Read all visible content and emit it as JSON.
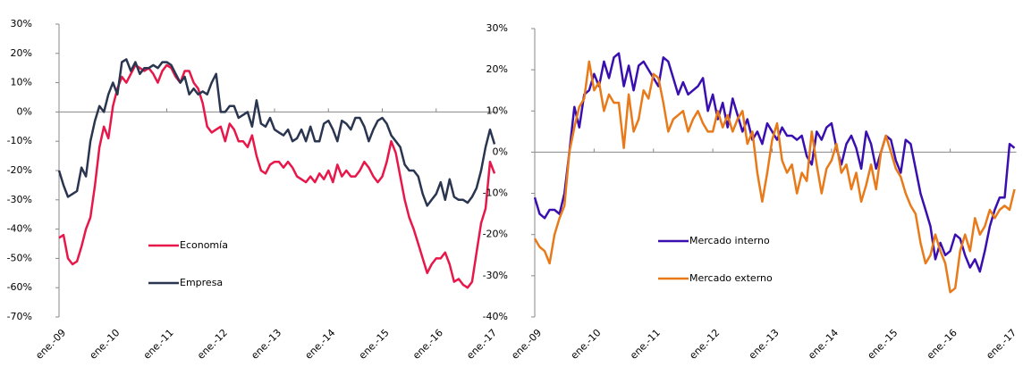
{
  "chart_data": [
    {
      "type": "line",
      "categories": [
        "ene.-09",
        null,
        null,
        null,
        null,
        null,
        null,
        null,
        null,
        null,
        null,
        null,
        "ene.-10",
        null,
        null,
        null,
        null,
        null,
        null,
        null,
        null,
        null,
        null,
        null,
        "ene.-11",
        null,
        null,
        null,
        null,
        null,
        null,
        null,
        null,
        null,
        null,
        null,
        "ene.-12",
        null,
        null,
        null,
        null,
        null,
        null,
        null,
        null,
        null,
        null,
        null,
        "ene.-13",
        null,
        null,
        null,
        null,
        null,
        null,
        null,
        null,
        null,
        null,
        null,
        "ene.-14",
        null,
        null,
        null,
        null,
        null,
        null,
        null,
        null,
        null,
        null,
        null,
        "ene.-15",
        null,
        null,
        null,
        null,
        null,
        null,
        null,
        null,
        null,
        null,
        null,
        "ene.-16",
        null,
        null,
        null,
        null,
        null,
        null,
        null,
        null,
        null,
        null,
        null,
        "ene.-17",
        null
      ],
      "series": [
        {
          "name": "Economía",
          "color": "#e8174a",
          "values": [
            -43,
            -42,
            -50,
            -52,
            -51,
            -46,
            -40,
            -36,
            -25,
            -12,
            -5,
            -9,
            2,
            8,
            12,
            10,
            13,
            16,
            15,
            14,
            15,
            13,
            10,
            14,
            16,
            15,
            12,
            10,
            14,
            14,
            10,
            8,
            3,
            -5,
            -7,
            -6,
            -5,
            -10,
            -4,
            -6,
            -10,
            -10,
            -12,
            -8,
            -15,
            -20,
            -21,
            -18,
            -17,
            -17,
            -19,
            -17,
            -19,
            -22,
            -23,
            -24,
            -22,
            -24,
            -21,
            -23,
            -20,
            -24,
            -18,
            -22,
            -20,
            -22,
            -22,
            -20,
            -17,
            -19,
            -22,
            -24,
            -22,
            -17,
            -10,
            -14,
            -22,
            -30,
            -36,
            -40,
            -45,
            -50,
            -55,
            -52,
            -50,
            -50,
            -48,
            -52,
            -58,
            -57,
            -59,
            -60,
            -58,
            -48,
            -38,
            -33,
            -17,
            -21
          ]
        },
        {
          "name": "Empresa",
          "color": "#2a3550",
          "values": [
            -20,
            -25,
            -29,
            -28,
            -27,
            -19,
            -22,
            -10,
            -3,
            2,
            0,
            6,
            10,
            6,
            17,
            18,
            14,
            17,
            13,
            15,
            15,
            16,
            15,
            17,
            17,
            16,
            13,
            10,
            12,
            6,
            8,
            6,
            7,
            6,
            10,
            13,
            0,
            0,
            2,
            2,
            -2,
            -1,
            0,
            -5,
            4,
            -4,
            -5,
            -2,
            -6,
            -7,
            -8,
            -6,
            -10,
            -9,
            -6,
            -10,
            -5,
            -10,
            -10,
            -4,
            -3,
            -6,
            -10,
            -3,
            -4,
            -6,
            -2,
            -2,
            -5,
            -10,
            -6,
            -3,
            -2,
            -4,
            -8,
            -10,
            -12,
            -18,
            -20,
            -20,
            -22,
            -28,
            -32,
            -30,
            -28,
            -24,
            -30,
            -23,
            -29,
            -30,
            -30,
            -31,
            -29,
            -26,
            -20,
            -12,
            -6,
            -11
          ]
        }
      ],
      "ylim": [
        -70,
        30
      ],
      "yticks": [
        {
          "value": -70,
          "label": "-70%"
        },
        {
          "value": -60,
          "label": "-60%"
        },
        {
          "value": -50,
          "label": "-50%"
        },
        {
          "value": -40,
          "label": "-40%"
        },
        {
          "value": -30,
          "label": "-30%"
        },
        {
          "value": -20,
          "label": "-20%"
        },
        {
          "value": -10,
          "label": "-10%"
        },
        {
          "value": 0,
          "label": "0%"
        },
        {
          "value": 10,
          "label": "10%"
        },
        {
          "value": 20,
          "label": "20%"
        },
        {
          "value": 30,
          "label": "30%"
        }
      ],
      "legend": "lower-center"
    },
    {
      "type": "line",
      "categories": [
        "ene.-09",
        null,
        null,
        null,
        null,
        null,
        null,
        null,
        null,
        null,
        null,
        null,
        "ene.-10",
        null,
        null,
        null,
        null,
        null,
        null,
        null,
        null,
        null,
        null,
        null,
        "ene.-11",
        null,
        null,
        null,
        null,
        null,
        null,
        null,
        null,
        null,
        null,
        null,
        "ene.-12",
        null,
        null,
        null,
        null,
        null,
        null,
        null,
        null,
        null,
        null,
        null,
        "ene.-13",
        null,
        null,
        null,
        null,
        null,
        null,
        null,
        null,
        null,
        null,
        null,
        "ene.-14",
        null,
        null,
        null,
        null,
        null,
        null,
        null,
        null,
        null,
        null,
        null,
        "ene.-15",
        null,
        null,
        null,
        null,
        null,
        null,
        null,
        null,
        null,
        null,
        null,
        "ene.-16",
        null,
        null,
        null,
        null,
        null,
        null,
        null,
        null,
        null,
        null,
        null,
        "ene.-17",
        null
      ],
      "series": [
        {
          "name": "Mercado interno",
          "color": "#3a0fb0",
          "values": [
            -11,
            -15,
            -16,
            -14,
            -14,
            -15,
            -10,
            0,
            11,
            6,
            14,
            15,
            19,
            16,
            22,
            18,
            23,
            24,
            16,
            21,
            15,
            21,
            22,
            20,
            18,
            16,
            23,
            22,
            18,
            14,
            17,
            14,
            15,
            16,
            18,
            10,
            14,
            8,
            12,
            6,
            13,
            9,
            5,
            8,
            3,
            5,
            2,
            7,
            5,
            3,
            6,
            4,
            4,
            3,
            4,
            -1,
            -3,
            5,
            3,
            6,
            7,
            1,
            -3,
            2,
            4,
            1,
            -4,
            5,
            2,
            -4,
            0,
            4,
            3,
            -2,
            -5,
            3,
            2,
            -4,
            -10,
            -14,
            -18,
            -26,
            -22,
            -25,
            -24,
            -20,
            -21,
            -25,
            -28,
            -26,
            -29,
            -24,
            -18,
            -14,
            -11,
            -11,
            2,
            1
          ]
        },
        {
          "name": "Mercado externo",
          "color": "#e87a1a",
          "values": [
            -21,
            -23,
            -24,
            -27,
            -20,
            -16,
            -13,
            0,
            6,
            11,
            13,
            22,
            15,
            17,
            10,
            14,
            12,
            12,
            1,
            14,
            5,
            8,
            15,
            13,
            19,
            18,
            12,
            5,
            8,
            9,
            10,
            5,
            8,
            10,
            7,
            5,
            5,
            10,
            6,
            9,
            5,
            8,
            10,
            2,
            5,
            -5,
            -12,
            -5,
            3,
            7,
            -2,
            -5,
            -3,
            -10,
            -5,
            -7,
            5,
            -3,
            -10,
            -4,
            -2,
            2,
            -5,
            -3,
            -9,
            -5,
            -12,
            -8,
            -3,
            -9,
            0,
            4,
            0,
            -4,
            -6,
            -10,
            -13,
            -15,
            -22,
            -27,
            -25,
            -20,
            -24,
            -27,
            -34,
            -33,
            -24,
            -20,
            -24,
            -16,
            -20,
            -18,
            -14,
            -16,
            -14,
            -13,
            -14,
            -9
          ]
        }
      ],
      "ylim": [
        -40,
        30
      ],
      "yticks": [
        {
          "value": -40,
          "label": "-40%"
        },
        {
          "value": -30,
          "label": "-30%"
        },
        {
          "value": -20,
          "label": "-20%"
        },
        {
          "value": -10,
          "label": "-10%"
        },
        {
          "value": 0,
          "label": "0%"
        },
        {
          "value": 10,
          "label": "10%"
        },
        {
          "value": 20,
          "label": "20%"
        },
        {
          "value": 30,
          "label": "30%"
        }
      ],
      "legend": "lower-center"
    }
  ]
}
